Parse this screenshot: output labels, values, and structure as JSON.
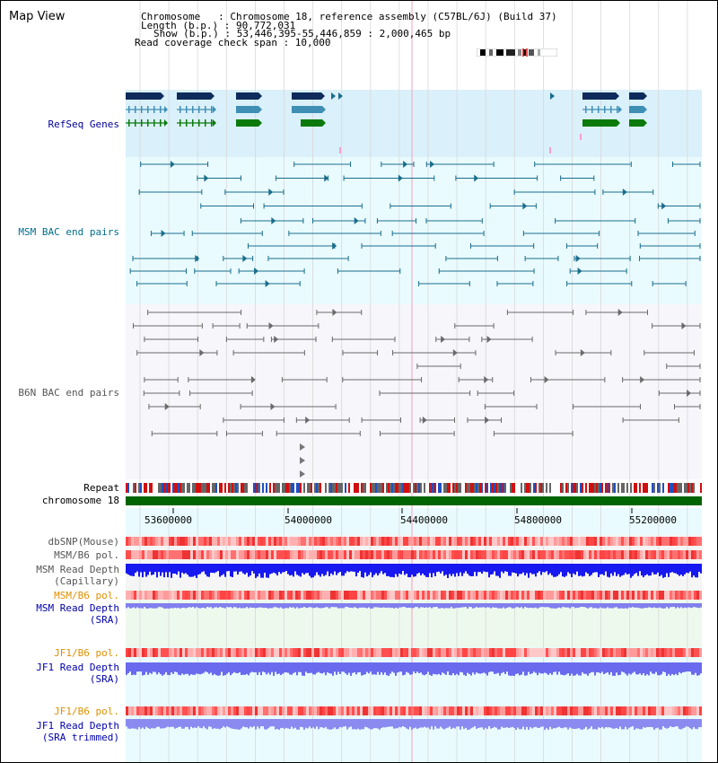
{
  "window": {
    "title": "Map View"
  },
  "header": {
    "chromosome_line": "Chromosome   : Chromosome 18, reference assembly (C57BL/6J) (Build 37)",
    "length_line": "Length (b.p.) : 90,772,031",
    "show_line": "Show (b.p.) : 53,446,395-55,446,859 : 2,000,465 bp",
    "coverage_line": "Read coverage check span : 10,000"
  },
  "tracks": {
    "refseq": "RefSeq Genes",
    "msm_bac": "MSM BAC end pairs",
    "b6n_bac": "B6N BAC end pairs",
    "repeat": "Repeat",
    "chromosome": "chromosome 18",
    "dbsnp": "dbSNP(Mouse)",
    "msm_b6_pol": "MSM/B6 pol.",
    "msm_read_depth_cap_1": "MSM Read Depth",
    "msm_read_depth_cap_2": "(Capillary)",
    "msm_b6_pol_sra": "MSM/B6 pol.",
    "msm_read_depth_sra_1": "MSM Read Depth",
    "msm_read_depth_sra_2": "(SRA)",
    "jf1_b6_pol_1": "JF1/B6 pol.",
    "jf1_read_depth_1": "JF1 Read Depth",
    "jf1_read_depth_1b": "(SRA)",
    "jf1_b6_pol_2": "JF1/B6 pol.",
    "jf1_read_depth_2": "JF1 Read Depth",
    "jf1_read_depth_2b": "(SRA trimmed)"
  },
  "axis": {
    "ticks": [
      "53600000",
      "54000000",
      "54400000",
      "54800000",
      "55200000"
    ]
  },
  "colors": {
    "refseq_label": "#000099",
    "msm_bac_label": "#006e8c",
    "b6n_bac_label": "#555555",
    "orange_label": "#e09000",
    "blue_label": "#0000aa"
  }
}
